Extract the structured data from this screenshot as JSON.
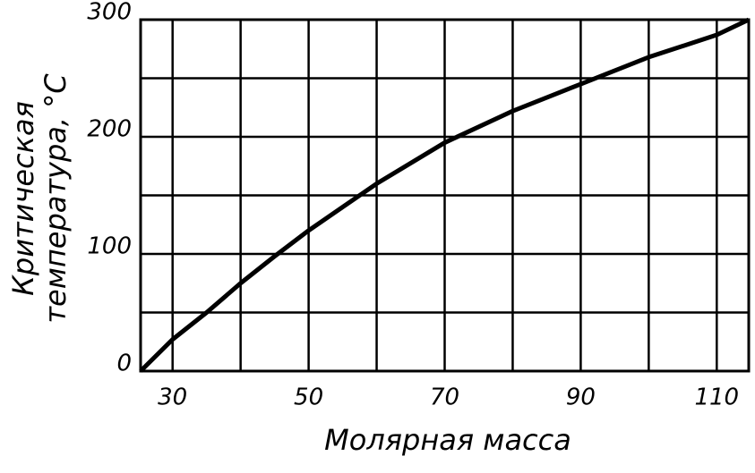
{
  "chart_data": {
    "type": "line",
    "x_label": "Молярная масса",
    "y_label": [
      "Критическая",
      "температура, °С"
    ],
    "series": [
      {
        "color": "#000000",
        "x": [
          25.3,
          30,
          35,
          40,
          45,
          50,
          55,
          60,
          70,
          80,
          90,
          100,
          110,
          114.7
        ],
        "values": [
          0,
          27,
          50,
          75,
          98,
          120,
          140,
          160,
          195,
          222,
          245,
          268,
          287,
          300
        ]
      }
    ],
    "xlim": [
      25.3,
      114.7
    ],
    "xticks": [
      30,
      50,
      70,
      90,
      110
    ],
    "xminor": [
      40,
      60,
      80,
      100
    ],
    "ylim": [
      0,
      300
    ],
    "yticks": [
      0,
      100,
      200,
      300
    ],
    "yminor": [
      50,
      150,
      250
    ],
    "grid": true
  }
}
